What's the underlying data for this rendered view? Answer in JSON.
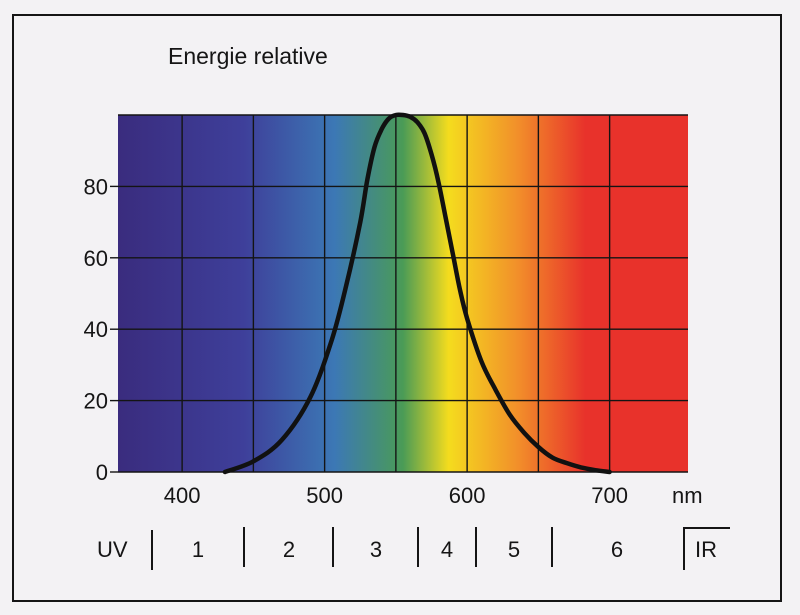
{
  "chart_data": {
    "type": "line",
    "title": "Energie relative",
    "xlabel": "nm",
    "ylabel": "",
    "xlim": [
      355,
      755
    ],
    "ylim": [
      0,
      100
    ],
    "x_ticks": [
      400,
      500,
      600,
      700
    ],
    "y_ticks": [
      0,
      20,
      40,
      60,
      80
    ],
    "grid": true,
    "background": "visible spectrum gradient (violet to red)",
    "spectrum_colors": {
      "violet": "#3a2c7e",
      "indigo": "#3e3f9a",
      "blue": "#3c78b5",
      "green": "#4a9b56",
      "yellow": "#f4dc1e",
      "orange": "#f2902a",
      "red": "#e8322b"
    },
    "series": [
      {
        "color": "#111111",
        "x": [
          430,
          450,
          470,
          490,
          505,
          515,
          525,
          530,
          535,
          540,
          545,
          550,
          555,
          560,
          565,
          570,
          575,
          580,
          585,
          590,
          595,
          600,
          610,
          620,
          630,
          640,
          650,
          660,
          670,
          680,
          690,
          700
        ],
        "y": [
          0,
          3,
          9,
          21,
          37,
          52,
          70,
          82,
          91,
          96,
          99,
          100,
          100,
          99.5,
          98,
          95,
          89,
          81,
          71,
          61,
          51,
          43,
          31,
          23,
          16,
          11,
          7,
          4,
          2.5,
          1.3,
          0.5,
          0
        ]
      }
    ]
  },
  "bands": {
    "uv_label": "UV",
    "ir_label": "IR",
    "numbers": [
      "1",
      "2",
      "3",
      "4",
      "5",
      "6"
    ]
  }
}
